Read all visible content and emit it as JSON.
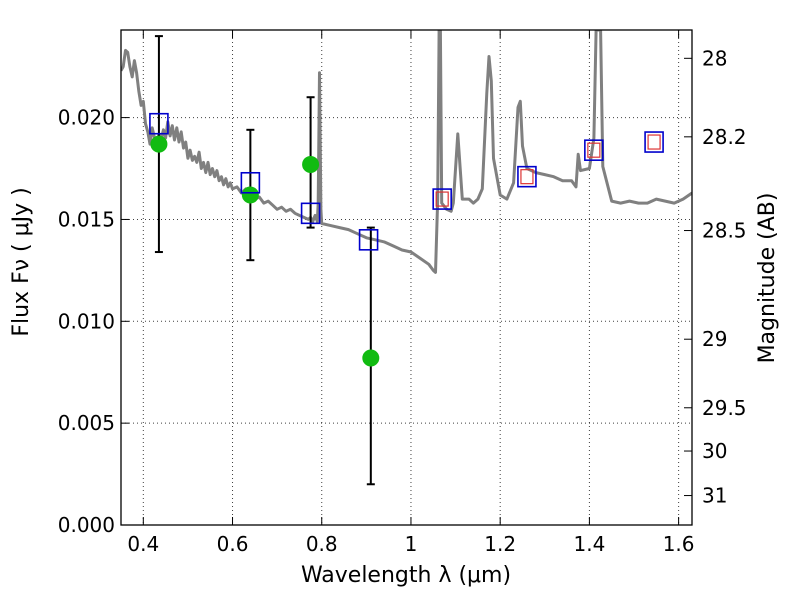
{
  "chart_data": {
    "type": "scatter",
    "xlabel": "Wavelength  λ (μm)",
    "ylabel": "Flux  Fν  ( μJy )",
    "ylabel_right": "Magnitude (AB)",
    "xlim": [
      0.35,
      1.63
    ],
    "ylim": [
      0.0,
      0.0243
    ],
    "x_ticks": [
      0.4,
      0.6,
      0.8,
      1.0,
      1.2,
      1.4,
      1.6
    ],
    "x_tick_labels": [
      "0.4",
      "0.6",
      "0.8",
      "1",
      "1.2",
      "1.4",
      "1.6"
    ],
    "y_ticks": [
      0.0,
      0.005,
      0.01,
      0.015,
      0.02
    ],
    "y_tick_labels": [
      "0.000",
      "0.005",
      "0.010",
      "0.015",
      "0.020"
    ],
    "right_ticks": [
      {
        "label": "28",
        "mag": 28.0
      },
      {
        "label": "28.2",
        "mag": 28.2
      },
      {
        "label": "28.5",
        "mag": 28.5
      },
      {
        "label": "29",
        "mag": 29.0
      },
      {
        "label": "29.5",
        "mag": 29.5
      },
      {
        "label": "30",
        "mag": 30.0
      },
      {
        "label": "31",
        "mag": 31.0
      }
    ],
    "grid": true,
    "colors": {
      "model": "#808080",
      "observed": "#11bb11",
      "model_band": "#0000cc",
      "model_band_inner": "#dd3333",
      "errorbar": "#000000"
    },
    "series": [
      {
        "kind": "model-spectrum",
        "points": [
          [
            0.35,
            0.0223
          ],
          [
            0.355,
            0.0225
          ],
          [
            0.36,
            0.0233
          ],
          [
            0.365,
            0.0232
          ],
          [
            0.37,
            0.0225
          ],
          [
            0.375,
            0.022
          ],
          [
            0.38,
            0.0228
          ],
          [
            0.385,
            0.0222
          ],
          [
            0.39,
            0.0213
          ],
          [
            0.395,
            0.0206
          ],
          [
            0.4,
            0.0208
          ],
          [
            0.405,
            0.0197
          ],
          [
            0.41,
            0.0193
          ],
          [
            0.415,
            0.0187
          ],
          [
            0.42,
            0.0195
          ],
          [
            0.425,
            0.019
          ],
          [
            0.43,
            0.0186
          ],
          [
            0.435,
            0.0192
          ],
          [
            0.44,
            0.0189
          ],
          [
            0.445,
            0.0194
          ],
          [
            0.45,
            0.019
          ],
          [
            0.455,
            0.0198
          ],
          [
            0.46,
            0.0191
          ],
          [
            0.465,
            0.0196
          ],
          [
            0.47,
            0.0189
          ],
          [
            0.475,
            0.0195
          ],
          [
            0.48,
            0.0188
          ],
          [
            0.485,
            0.0193
          ],
          [
            0.49,
            0.0185
          ],
          [
            0.495,
            0.0188
          ],
          [
            0.5,
            0.018
          ],
          [
            0.505,
            0.0184
          ],
          [
            0.51,
            0.0179
          ],
          [
            0.515,
            0.0181
          ],
          [
            0.52,
            0.0178
          ],
          [
            0.525,
            0.0183
          ],
          [
            0.53,
            0.0175
          ],
          [
            0.535,
            0.0178
          ],
          [
            0.54,
            0.0173
          ],
          [
            0.545,
            0.0178
          ],
          [
            0.55,
            0.0172
          ],
          [
            0.555,
            0.0175
          ],
          [
            0.56,
            0.0171
          ],
          [
            0.565,
            0.0174
          ],
          [
            0.57,
            0.0169
          ],
          [
            0.575,
            0.0171
          ],
          [
            0.58,
            0.0167
          ],
          [
            0.585,
            0.017
          ],
          [
            0.59,
            0.0166
          ],
          [
            0.595,
            0.0168
          ],
          [
            0.6,
            0.0165
          ],
          [
            0.61,
            0.0166
          ],
          [
            0.62,
            0.0163
          ],
          [
            0.63,
            0.0165
          ],
          [
            0.64,
            0.0162
          ],
          [
            0.65,
            0.016
          ],
          [
            0.66,
            0.0161
          ],
          [
            0.67,
            0.0158
          ],
          [
            0.68,
            0.0159
          ],
          [
            0.69,
            0.0157
          ],
          [
            0.7,
            0.0155
          ],
          [
            0.71,
            0.0156
          ],
          [
            0.72,
            0.0154
          ],
          [
            0.73,
            0.0155
          ],
          [
            0.74,
            0.0153
          ],
          [
            0.75,
            0.0152
          ],
          [
            0.76,
            0.0151
          ],
          [
            0.77,
            0.015
          ],
          [
            0.775,
            0.0151
          ],
          [
            0.78,
            0.0149
          ],
          [
            0.785,
            0.0152
          ],
          [
            0.79,
            0.0149
          ],
          [
            0.792,
            0.0158
          ],
          [
            0.795,
            0.0222
          ],
          [
            0.798,
            0.0155
          ],
          [
            0.8,
            0.0148
          ],
          [
            0.82,
            0.0147
          ],
          [
            0.84,
            0.0146
          ],
          [
            0.86,
            0.0145
          ],
          [
            0.88,
            0.0143
          ],
          [
            0.9,
            0.0141
          ],
          [
            0.92,
            0.014
          ],
          [
            0.94,
            0.0139
          ],
          [
            0.96,
            0.0137
          ],
          [
            0.98,
            0.0135
          ],
          [
            1.0,
            0.0134
          ],
          [
            1.02,
            0.0131
          ],
          [
            1.04,
            0.0128
          ],
          [
            1.05,
            0.0125
          ],
          [
            1.055,
            0.0124
          ],
          [
            1.06,
            0.016
          ],
          [
            1.063,
            0.0243
          ],
          [
            1.066,
            0.0243
          ],
          [
            1.069,
            0.0158
          ],
          [
            1.08,
            0.0155
          ],
          [
            1.09,
            0.0154
          ],
          [
            1.095,
            0.0158
          ],
          [
            1.105,
            0.0192
          ],
          [
            1.115,
            0.016
          ],
          [
            1.13,
            0.016
          ],
          [
            1.14,
            0.0158
          ],
          [
            1.15,
            0.016
          ],
          [
            1.16,
            0.0165
          ],
          [
            1.17,
            0.0212
          ],
          [
            1.175,
            0.023
          ],
          [
            1.18,
            0.0218
          ],
          [
            1.185,
            0.018
          ],
          [
            1.2,
            0.0162
          ],
          [
            1.215,
            0.016
          ],
          [
            1.23,
            0.0168
          ],
          [
            1.24,
            0.0205
          ],
          [
            1.245,
            0.0208
          ],
          [
            1.25,
            0.0186
          ],
          [
            1.26,
            0.0175
          ],
          [
            1.28,
            0.0173
          ],
          [
            1.3,
            0.0172
          ],
          [
            1.32,
            0.0171
          ],
          [
            1.34,
            0.0169
          ],
          [
            1.36,
            0.0169
          ],
          [
            1.37,
            0.0166
          ],
          [
            1.375,
            0.0182
          ],
          [
            1.38,
            0.0174
          ],
          [
            1.4,
            0.0175
          ],
          [
            1.41,
            0.019
          ],
          [
            1.415,
            0.0243
          ],
          [
            1.425,
            0.0243
          ],
          [
            1.43,
            0.0176
          ],
          [
            1.45,
            0.0159
          ],
          [
            1.47,
            0.0158
          ],
          [
            1.49,
            0.0159
          ],
          [
            1.51,
            0.0158
          ],
          [
            1.53,
            0.0158
          ],
          [
            1.55,
            0.016
          ],
          [
            1.57,
            0.0159
          ],
          [
            1.59,
            0.0158
          ],
          [
            1.61,
            0.016
          ],
          [
            1.63,
            0.0163
          ]
        ]
      },
      {
        "kind": "observed-photometry",
        "points": [
          {
            "x": 0.435,
            "y": 0.0187,
            "ylo": 0.0134,
            "yhi": 0.024
          },
          {
            "x": 0.64,
            "y": 0.0162,
            "ylo": 0.013,
            "yhi": 0.0194
          },
          {
            "x": 0.775,
            "y": 0.0177,
            "ylo": 0.0146,
            "yhi": 0.021
          },
          {
            "x": 0.91,
            "y": 0.0082,
            "ylo": 0.002,
            "yhi": 0.0146
          }
        ]
      },
      {
        "kind": "model-bandpass",
        "points": [
          {
            "x": 0.435,
            "y": 0.0197,
            "inner": false
          },
          {
            "x": 0.64,
            "y": 0.0168,
            "inner": false
          },
          {
            "x": 0.775,
            "y": 0.0153,
            "inner": false
          },
          {
            "x": 0.905,
            "y": 0.014,
            "inner": false
          },
          {
            "x": 1.07,
            "y": 0.016,
            "inner": true
          },
          {
            "x": 1.26,
            "y": 0.0171,
            "inner": true
          },
          {
            "x": 1.41,
            "y": 0.0184,
            "inner": true
          },
          {
            "x": 1.545,
            "y": 0.0188,
            "inner": true
          }
        ]
      }
    ]
  }
}
